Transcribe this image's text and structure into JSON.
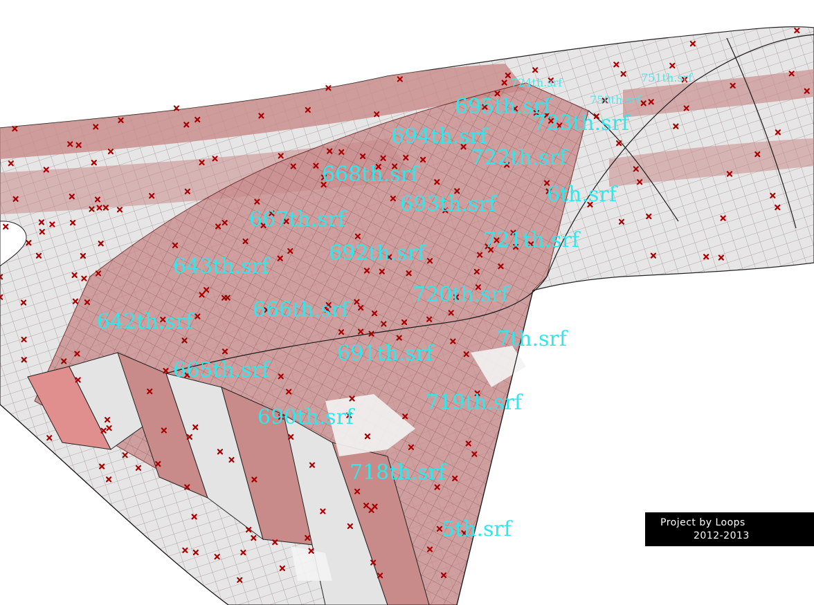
{
  "credit": {
    "line1": "Project  by  Loops",
    "line2": "2012-2013"
  },
  "surface_labels": [
    {
      "id": "s642",
      "text": "642th.srf"
    },
    {
      "id": "s643",
      "text": "643th.srf"
    },
    {
      "id": "s665",
      "text": "665th.srf"
    },
    {
      "id": "s666",
      "text": "666th.srf"
    },
    {
      "id": "s667",
      "text": "667th.srf"
    },
    {
      "id": "s668",
      "text": "668th.srf"
    },
    {
      "id": "s690",
      "text": "690th.srf"
    },
    {
      "id": "s691",
      "text": "691th.srf"
    },
    {
      "id": "s692",
      "text": "692th.srf"
    },
    {
      "id": "s693",
      "text": "693th.srf"
    },
    {
      "id": "s694",
      "text": "694th.srf"
    },
    {
      "id": "s695",
      "text": "695th.srf"
    },
    {
      "id": "s718",
      "text": "718th.srf"
    },
    {
      "id": "s719",
      "text": "719th.srf"
    },
    {
      "id": "s720",
      "text": "720th.srf"
    },
    {
      "id": "s721",
      "text": "721th.srf"
    },
    {
      "id": "s722",
      "text": "722th.srf"
    },
    {
      "id": "s723",
      "text": "723th.srf"
    },
    {
      "id": "s724",
      "text": "724th.srf"
    },
    {
      "id": "s750",
      "text": "750th.srf"
    },
    {
      "id": "s751",
      "text": "751th.srf"
    },
    {
      "id": "s5",
      "text": "5th.srf"
    },
    {
      "id": "s6",
      "text": "6th.srf"
    },
    {
      "id": "s7",
      "text": "7th.srf"
    }
  ],
  "colors": {
    "surface_highlight": "#c98a8a",
    "surface_base": "#e4e4e4",
    "marker": "#a80000",
    "label": "#2ee8ee",
    "credit_bg": "#000000"
  }
}
